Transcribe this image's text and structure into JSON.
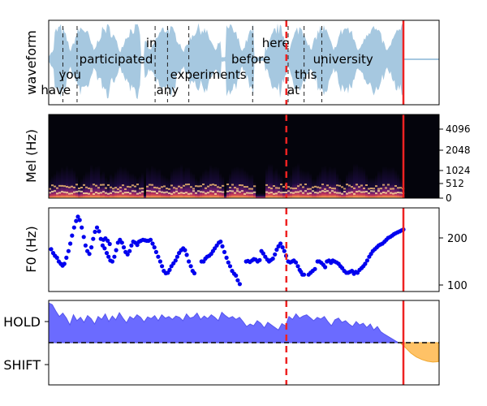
{
  "colors": {
    "waveform": "#a6c8e0",
    "hold_fill": "#6b6bff",
    "shift_fill": "#ffc266",
    "f0_points": "#0000ee",
    "marker_red": "#ee2222",
    "spec_bg": "#04040c"
  },
  "chart_data": [
    {
      "type": "area",
      "panel": "waveform",
      "ylabel": "waveform",
      "xlim": [
        0,
        100
      ],
      "words": [
        {
          "text": "have",
          "x": 2.0,
          "level": "low"
        },
        {
          "text": "you",
          "x": 6.0,
          "level": "midlow"
        },
        {
          "text": "participated",
          "x": 19.0,
          "level": "mid"
        },
        {
          "text": "in",
          "x": 29.0,
          "level": "high"
        },
        {
          "text": "any",
          "x": 33.5,
          "level": "low"
        },
        {
          "text": "experiments",
          "x": 45.0,
          "level": "midlow"
        },
        {
          "text": "before",
          "x": 57.0,
          "level": "mid"
        },
        {
          "text": "here",
          "x": 64.0,
          "level": "high"
        },
        {
          "text": "at",
          "x": 69.0,
          "level": "low"
        },
        {
          "text": "this",
          "x": 72.5,
          "level": "midlow"
        },
        {
          "text": "university",
          "x": 83.0,
          "level": "mid"
        }
      ],
      "word_boundaries": [
        4.0,
        8.0,
        30.0,
        33.5,
        39.5,
        57.5,
        67.5,
        72.0,
        77.0
      ],
      "dashed_marker_x": 67.0,
      "solid_marker_x": 100.0
    },
    {
      "type": "heatmap",
      "panel": "spectrogram",
      "ylabel": "Mel (Hz)",
      "yticks": [
        "0",
        "512",
        "1024",
        "2048",
        "4096"
      ],
      "dashed_marker_x": 67.0,
      "solid_marker_x": 100.0
    },
    {
      "type": "scatter",
      "panel": "f0",
      "ylabel": "F0 (Hz)",
      "ylim": [
        90,
        250
      ],
      "yticks": [
        100,
        200
      ],
      "points": [
        [
          0.0,
          176
        ],
        [
          0.8,
          168
        ],
        [
          1.5,
          162
        ],
        [
          2.3,
          158
        ],
        [
          3.0,
          150
        ],
        [
          3.8,
          145
        ],
        [
          4.5,
          141
        ],
        [
          5.2,
          145
        ],
        [
          6.0,
          158
        ],
        [
          6.8,
          172
        ],
        [
          7.5,
          188
        ],
        [
          8.2,
          205
        ],
        [
          9.0,
          222
        ],
        [
          9.8,
          236
        ],
        [
          10.5,
          245
        ],
        [
          11.2,
          238
        ],
        [
          12.0,
          222
        ],
        [
          12.8,
          202
        ],
        [
          13.5,
          184
        ],
        [
          14.2,
          172
        ],
        [
          15.0,
          166
        ],
        [
          15.8,
          180
        ],
        [
          16.5,
          198
        ],
        [
          17.2,
          213
        ],
        [
          18.0,
          222
        ],
        [
          18.8,
          214
        ],
        [
          19.5,
          198
        ],
        [
          20.2,
          184
        ],
        [
          21.0,
          178
        ],
        [
          21.8,
          168
        ],
        [
          22.5,
          160
        ],
        [
          23.2,
          152
        ],
        [
          24.0,
          150
        ],
        [
          24.8,
          160
        ],
        [
          25.5,
          174
        ],
        [
          26.2,
          190
        ],
        [
          27.0,
          196
        ],
        [
          27.8,
          190
        ],
        [
          28.5,
          180
        ],
        [
          29.2,
          170
        ],
        [
          30.0,
          165
        ],
        [
          30.8,
          172
        ],
        [
          31.5,
          184
        ],
        [
          32.2,
          192
        ],
        [
          33.0,
          190
        ],
        [
          33.8,
          185
        ],
        [
          20.5,
          196
        ],
        [
          21.3,
          199
        ],
        [
          22.2,
          194
        ],
        [
          23.0,
          187
        ],
        [
          34.5,
          192
        ],
        [
          35.2,
          194
        ],
        [
          36.0,
          196
        ],
        [
          36.8,
          195
        ],
        [
          37.5,
          194
        ],
        [
          38.2,
          194
        ],
        [
          39.0,
          196
        ],
        [
          39.8,
          188
        ],
        [
          40.5,
          180
        ],
        [
          41.2,
          170
        ],
        [
          42.0,
          160
        ],
        [
          42.8,
          150
        ],
        [
          43.5,
          140
        ],
        [
          44.2,
          130
        ],
        [
          45.0,
          125
        ],
        [
          45.8,
          126
        ],
        [
          46.5,
          132
        ],
        [
          47.2,
          140
        ],
        [
          48.0,
          146
        ],
        [
          48.8,
          152
        ],
        [
          49.5,
          160
        ],
        [
          50.2,
          168
        ],
        [
          51.0,
          174
        ],
        [
          51.8,
          178
        ],
        [
          52.5,
          174
        ],
        [
          53.2,
          164
        ],
        [
          54.0,
          150
        ],
        [
          54.8,
          140
        ],
        [
          55.5,
          130
        ],
        [
          56.2,
          125
        ],
        [
          59.0,
          150
        ],
        [
          59.8,
          150
        ],
        [
          60.5,
          156
        ],
        [
          61.2,
          160
        ],
        [
          62.0,
          162
        ],
        [
          62.8,
          166
        ],
        [
          63.5,
          172
        ],
        [
          64.2,
          178
        ],
        [
          65.0,
          184
        ],
        [
          65.8,
          190
        ],
        [
          66.5,
          192
        ],
        [
          67.2,
          182
        ],
        [
          68.0,
          170
        ],
        [
          68.8,
          158
        ],
        [
          69.5,
          148
        ],
        [
          70.2,
          140
        ],
        [
          71.0,
          130
        ],
        [
          71.8,
          124
        ],
        [
          72.5,
          120
        ],
        [
          73.2,
          110
        ],
        [
          74.0,
          102
        ],
        [
          76.5,
          150
        ],
        [
          77.2,
          151
        ],
        [
          78.0,
          149
        ],
        [
          78.8,
          152
        ],
        [
          79.5,
          155
        ],
        [
          80.2,
          154
        ],
        [
          81.0,
          150
        ],
        [
          81.8,
          153
        ],
        [
          82.5,
          172
        ],
        [
          83.2,
          167
        ],
        [
          84.0,
          160
        ],
        [
          84.8,
          154
        ],
        [
          85.5,
          150
        ],
        [
          86.2,
          153
        ],
        [
          87.0,
          156
        ],
        [
          87.8,
          165
        ],
        [
          88.5,
          175
        ],
        [
          89.2,
          182
        ],
        [
          90.0,
          188
        ],
        [
          90.8,
          180
        ],
        [
          91.5,
          172
        ],
        [
          92.2,
          162
        ],
        [
          93.0,
          150
        ],
        [
          93.8,
          148
        ],
        [
          94.5,
          150
        ],
        [
          95.2,
          152
        ],
        [
          96.0,
          148
        ],
        [
          96.8,
          140
        ],
        [
          97.5,
          132
        ],
        [
          98.0,
          128
        ],
        [
          98.6,
          122
        ],
        [
          99.2,
          122
        ],
        [
          101.0,
          122
        ],
        [
          101.8,
          126
        ],
        [
          102.6,
          130
        ],
        [
          103.5,
          134
        ],
        [
          104.5,
          150
        ],
        [
          105.2,
          150
        ],
        [
          106.0,
          147
        ],
        [
          106.8,
          143
        ],
        [
          107.5,
          138
        ],
        [
          108.2,
          150
        ],
        [
          109.0,
          152
        ],
        [
          109.8,
          147
        ],
        [
          110.5,
          152
        ],
        [
          111.2,
          150
        ],
        [
          112.0,
          148
        ],
        [
          112.8,
          145
        ],
        [
          113.5,
          140
        ],
        [
          114.2,
          136
        ],
        [
          115.0,
          130
        ],
        [
          115.8,
          126
        ],
        [
          116.5,
          126
        ],
        [
          117.2,
          128
        ],
        [
          118.0,
          130
        ],
        [
          118.8,
          124
        ],
        [
          119.5,
          128
        ],
        [
          120.2,
          126
        ],
        [
          121.0,
          132
        ],
        [
          121.8,
          136
        ],
        [
          122.5,
          140
        ],
        [
          123.2,
          145
        ],
        [
          124.0,
          152
        ],
        [
          124.8,
          160
        ],
        [
          125.5,
          166
        ],
        [
          126.2,
          172
        ],
        [
          127.0,
          176
        ],
        [
          127.8,
          180
        ],
        [
          128.5,
          184
        ],
        [
          129.2,
          186
        ],
        [
          130.0,
          188
        ],
        [
          130.8,
          192
        ],
        [
          131.5,
          196
        ],
        [
          132.2,
          200
        ],
        [
          133.0,
          202
        ],
        [
          133.8,
          205
        ],
        [
          134.5,
          208
        ],
        [
          135.2,
          210
        ],
        [
          136.0,
          212
        ],
        [
          136.8,
          214
        ],
        [
          137.5,
          216
        ],
        [
          138.2,
          218
        ]
      ],
      "dashed_marker_x": 67.0,
      "solid_marker_x": 100.0
    },
    {
      "type": "area",
      "panel": "hold-shift",
      "yticks": [
        "HOLD",
        "SHIFT"
      ],
      "hold": [
        0.94,
        0.9,
        0.75,
        0.62,
        0.7,
        0.58,
        0.42,
        0.66,
        0.52,
        0.6,
        0.48,
        0.64,
        0.57,
        0.44,
        0.62,
        0.55,
        0.68,
        0.5,
        0.63,
        0.54,
        0.71,
        0.58,
        0.47,
        0.62,
        0.56,
        0.66,
        0.6,
        0.49,
        0.61,
        0.57,
        0.64,
        0.52,
        0.66,
        0.58,
        0.62,
        0.55,
        0.63,
        0.6,
        0.52,
        0.68,
        0.58,
        0.61,
        0.7,
        0.55,
        0.63,
        0.57,
        0.66,
        0.6,
        0.52,
        0.72,
        0.64,
        0.58,
        0.62,
        0.55,
        0.6,
        0.5,
        0.38,
        0.44,
        0.4,
        0.52,
        0.46,
        0.35,
        0.48,
        0.42,
        0.36,
        0.3,
        0.45,
        0.4,
        0.62,
        0.55,
        0.68,
        0.58,
        0.63,
        0.66,
        0.59,
        0.52,
        0.6,
        0.56,
        0.62,
        0.5,
        0.4,
        0.54,
        0.58,
        0.48,
        0.52,
        0.44,
        0.38,
        0.5,
        0.42,
        0.46,
        0.36,
        0.44,
        0.3,
        0.38,
        0.26,
        0.2,
        0.15,
        0.1,
        0.05,
        0.0
      ],
      "shift": [
        0.0,
        -0.12,
        -0.25,
        -0.34,
        -0.4,
        -0.44,
        -0.46,
        -0.45
      ],
      "dashed_marker_x": 67.0,
      "solid_marker_x": 100.0
    }
  ]
}
